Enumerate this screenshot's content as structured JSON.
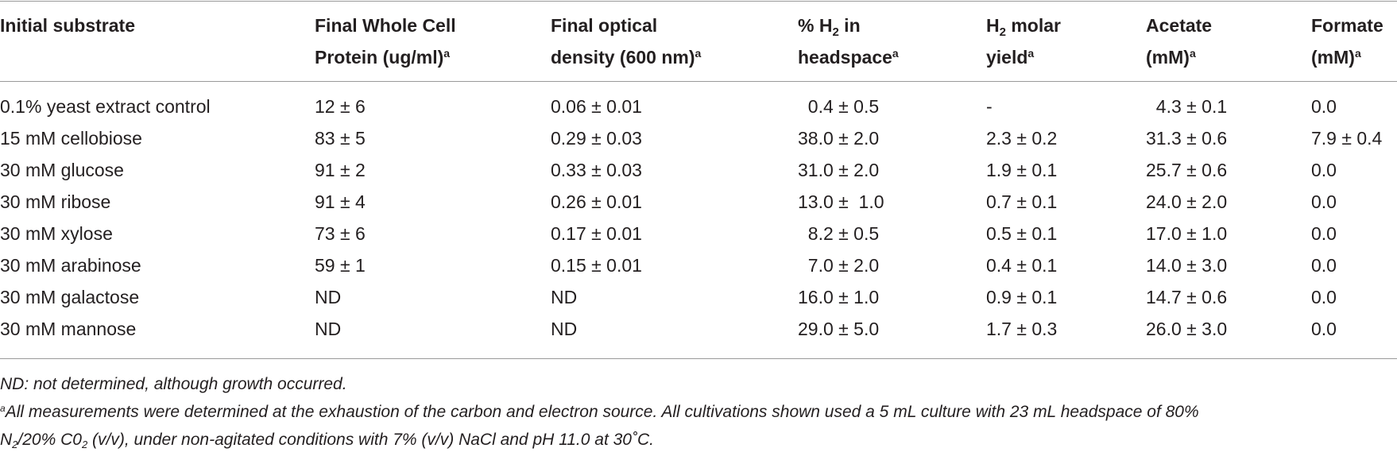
{
  "table": {
    "headers": {
      "substrate": [
        "Initial substrate"
      ],
      "protein": [
        "Final Whole Cell",
        "Protein (ug/ml)"
      ],
      "protein_fn": "a",
      "density": [
        "Final optical",
        "density (600 nm)"
      ],
      "density_fn": "a",
      "h2_pct": {
        "prefix": "% H",
        "sub": "2",
        "suffix": " in",
        "line2": "headspace",
        "fn": "a"
      },
      "h2_yield": {
        "prefix": "H",
        "sub": "2",
        "suffix": " molar",
        "line2": "yield",
        "fn": "a"
      },
      "acetate": [
        "Acetate",
        "(mM)"
      ],
      "acetate_fn": "a",
      "formate": [
        "Formate",
        "(mM)"
      ],
      "formate_fn": "a"
    },
    "rows": [
      {
        "substrate": "0.1% yeast extract control",
        "protein": "12 ± 6",
        "density": "0.06 ± 0.01",
        "h2_pct": "  0.4 ± 0.5",
        "h2_yield": "-",
        "acetate": "  4.3 ± 0.1",
        "formate": "0.0"
      },
      {
        "substrate": "15 mM cellobiose",
        "protein": "83 ± 5",
        "density": "0.29 ± 0.03",
        "h2_pct": "38.0 ± 2.0",
        "h2_yield": "2.3 ± 0.2",
        "acetate": "31.3 ± 0.6",
        "formate": "7.9 ± 0.4"
      },
      {
        "substrate": "30 mM glucose",
        "protein": "91 ± 2",
        "density": "0.33 ± 0.03",
        "h2_pct": "31.0 ± 2.0",
        "h2_yield": "1.9 ± 0.1",
        "acetate": "25.7 ± 0.6",
        "formate": "0.0"
      },
      {
        "substrate": "30 mM ribose",
        "protein": "91 ± 4",
        "density": "0.26 ± 0.01",
        "h2_pct": "13.0 ±  1.0",
        "h2_yield": "0.7 ± 0.1",
        "acetate": "24.0 ± 2.0",
        "formate": "0.0"
      },
      {
        "substrate": "30 mM xylose",
        "protein": "73 ± 6",
        "density": "0.17 ± 0.01",
        "h2_pct": "  8.2 ± 0.5",
        "h2_yield": "0.5 ± 0.1",
        "acetate": "17.0 ± 1.0",
        "formate": "0.0"
      },
      {
        "substrate": "30 mM arabinose",
        "protein": "59 ± 1",
        "density": "0.15 ± 0.01",
        "h2_pct": "  7.0 ± 2.0",
        "h2_yield": "0.4 ± 0.1",
        "acetate": "14.0 ± 3.0",
        "formate": "0.0"
      },
      {
        "substrate": "30 mM galactose",
        "protein": "ND",
        "density": "ND",
        "h2_pct": "16.0 ± 1.0",
        "h2_yield": "0.9 ± 0.1",
        "acetate": "14.7 ± 0.6",
        "formate": "0.0"
      },
      {
        "substrate": "30 mM mannose",
        "protein": "ND",
        "density": "ND",
        "h2_pct": "29.0 ± 5.0",
        "h2_yield": "1.7 ± 0.3",
        "acetate": "26.0 ± 3.0",
        "formate": "0.0"
      }
    ]
  },
  "footnotes": {
    "nd": "ND: not determined, although growth occurred.",
    "a_mark": "a",
    "a_line1": "All measurements were determined at the exhaustion of the carbon and electron source. All cultivations shown used a 5 mL culture with 23 mL headspace of 80%",
    "a_line2": {
      "p1": "N",
      "s1": "2",
      "p2": "/20% C0",
      "s2": "2",
      "p3": " (v/v), under non-agitated conditions with 7% (v/v) NaCl and pH 11.0 at 30˚C."
    }
  }
}
